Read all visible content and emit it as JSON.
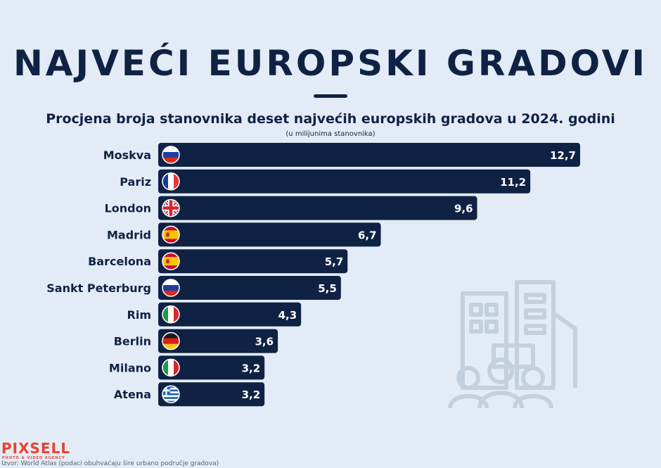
{
  "title": "NAJVEĆI EUROPSKI GRADOVI",
  "subtitle": "Procjena broja stanovnika deset najvećih europskih gradova u 2024. godini",
  "unit_note": "(u milijunima stanovnika)",
  "source": "Izvor: World Atlas (podaci obuhvaćaju šire urbano područje gradova)",
  "logo": {
    "name": "PIXSELL",
    "tagline": "PHOTO & VIDEO AGENCY"
  },
  "colors": {
    "background": "#e3ecf6",
    "bar": "#0f2244",
    "text": "#0f2244",
    "logo": "#e8432c"
  },
  "watermark_icon": "buildings-and-people-icon",
  "chart_data": {
    "type": "bar",
    "orientation": "horizontal",
    "title": "Procjena broja stanovnika deset najvećih europskih gradova u 2024. godini",
    "unit": "(u milijunima stanovnika)",
    "xlim": [
      0,
      12.7
    ],
    "categories": [
      "Moskva",
      "Pariz",
      "London",
      "Madrid",
      "Barcelona",
      "Sankt Peterburg",
      "Rim",
      "Berlin",
      "Milano",
      "Atena"
    ],
    "values": [
      12.7,
      11.2,
      9.6,
      6.7,
      5.7,
      5.5,
      4.3,
      3.6,
      3.2,
      3.2
    ],
    "value_labels": [
      "12,7",
      "11,2",
      "9,6",
      "6,7",
      "5,7",
      "5,5",
      "4,3",
      "3,6",
      "3,2",
      "3,2"
    ],
    "flags": [
      "russia-flag-icon",
      "france-flag-icon",
      "uk-flag-icon",
      "spain-flag-icon",
      "spain-flag-icon",
      "russia-flag-icon",
      "italy-flag-icon",
      "germany-flag-icon",
      "italy-flag-icon",
      "greece-flag-icon"
    ]
  }
}
